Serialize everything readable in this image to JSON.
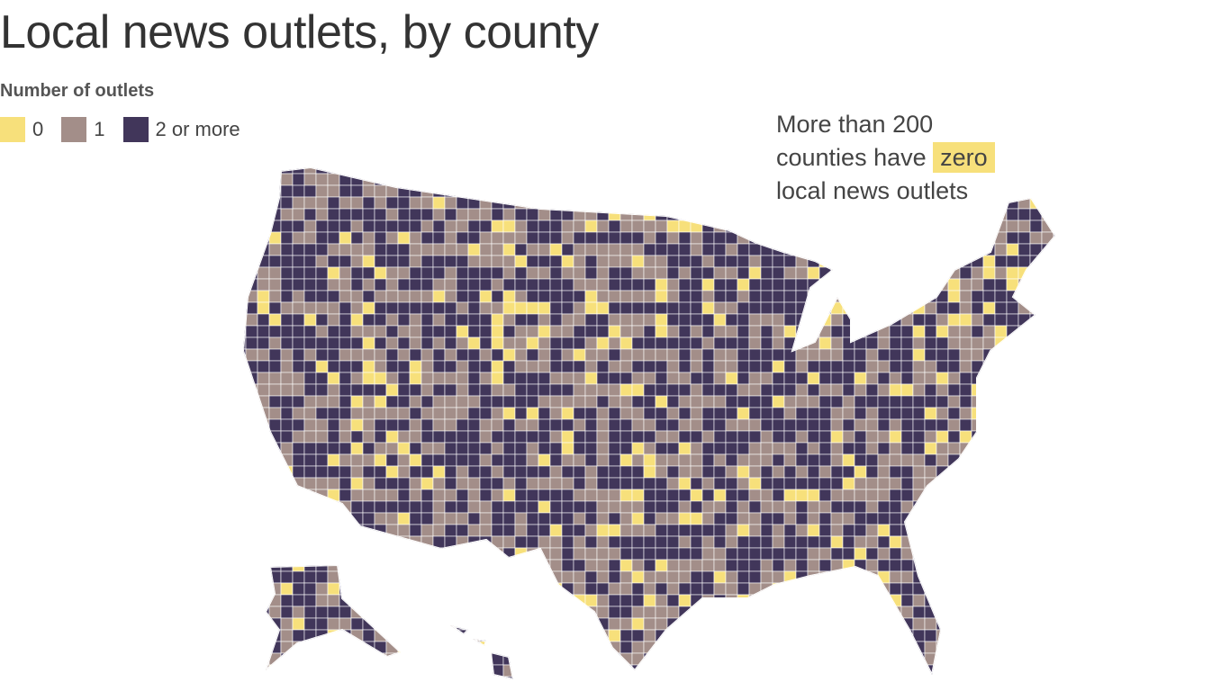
{
  "header": {
    "title": "Local news outlets, by county"
  },
  "legend": {
    "title": "Number of outlets",
    "items": [
      {
        "label": "0",
        "color": "#f7e07b"
      },
      {
        "label": "1",
        "color": "#a38e89"
      },
      {
        "label": "2 or more",
        "color": "#41365a"
      }
    ]
  },
  "annotation": {
    "line1": "More than 200",
    "line2": "counties have",
    "highlight": "zero",
    "line3": "local news outlets",
    "highlight_color": "#f7e07b"
  }
}
